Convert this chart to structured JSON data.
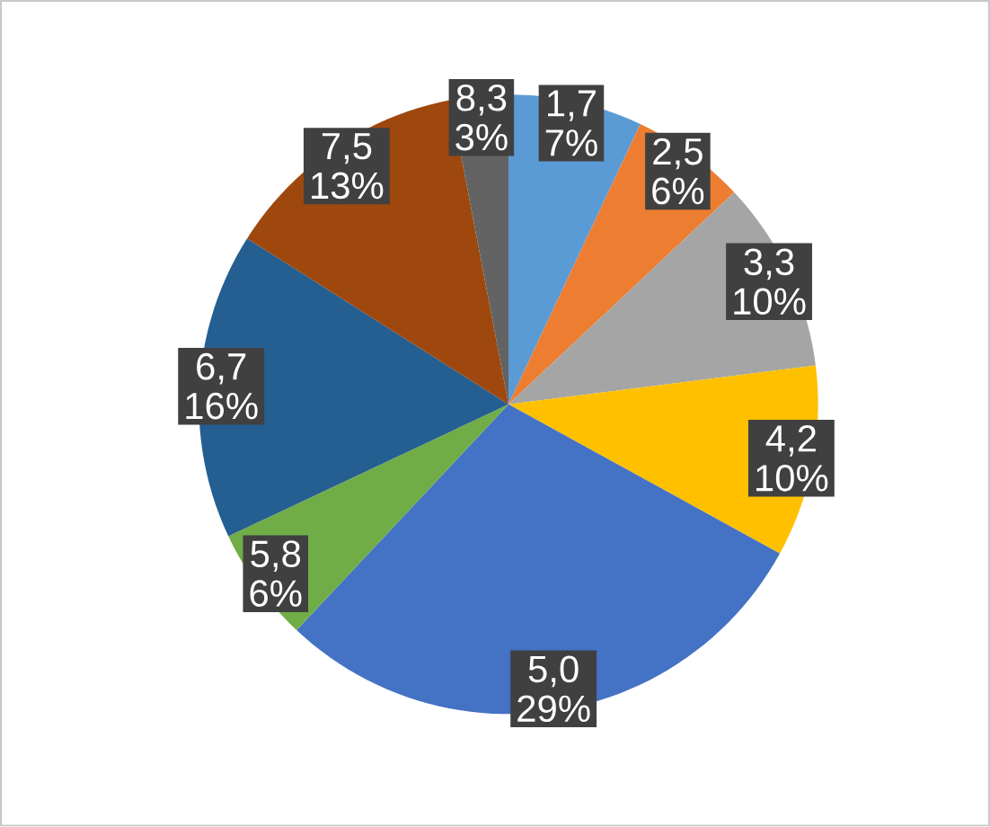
{
  "chart_data": {
    "type": "pie",
    "categories": [
      "1,7",
      "2,5",
      "3,3",
      "4,2",
      "5,0",
      "5,8",
      "6,7",
      "7,5",
      "8,3"
    ],
    "values": [
      7,
      6,
      10,
      10,
      29,
      6,
      16,
      13,
      3
    ],
    "value_labels": [
      "7%",
      "6%",
      "10%",
      "10%",
      "29%",
      "6%",
      "16%",
      "13%",
      "3%"
    ],
    "colors": [
      "#5b9bd5",
      "#ed7d31",
      "#a5a5a5",
      "#ffc000",
      "#4472c4",
      "#70ad47",
      "#255e91",
      "#9e480e",
      "#636363"
    ]
  }
}
